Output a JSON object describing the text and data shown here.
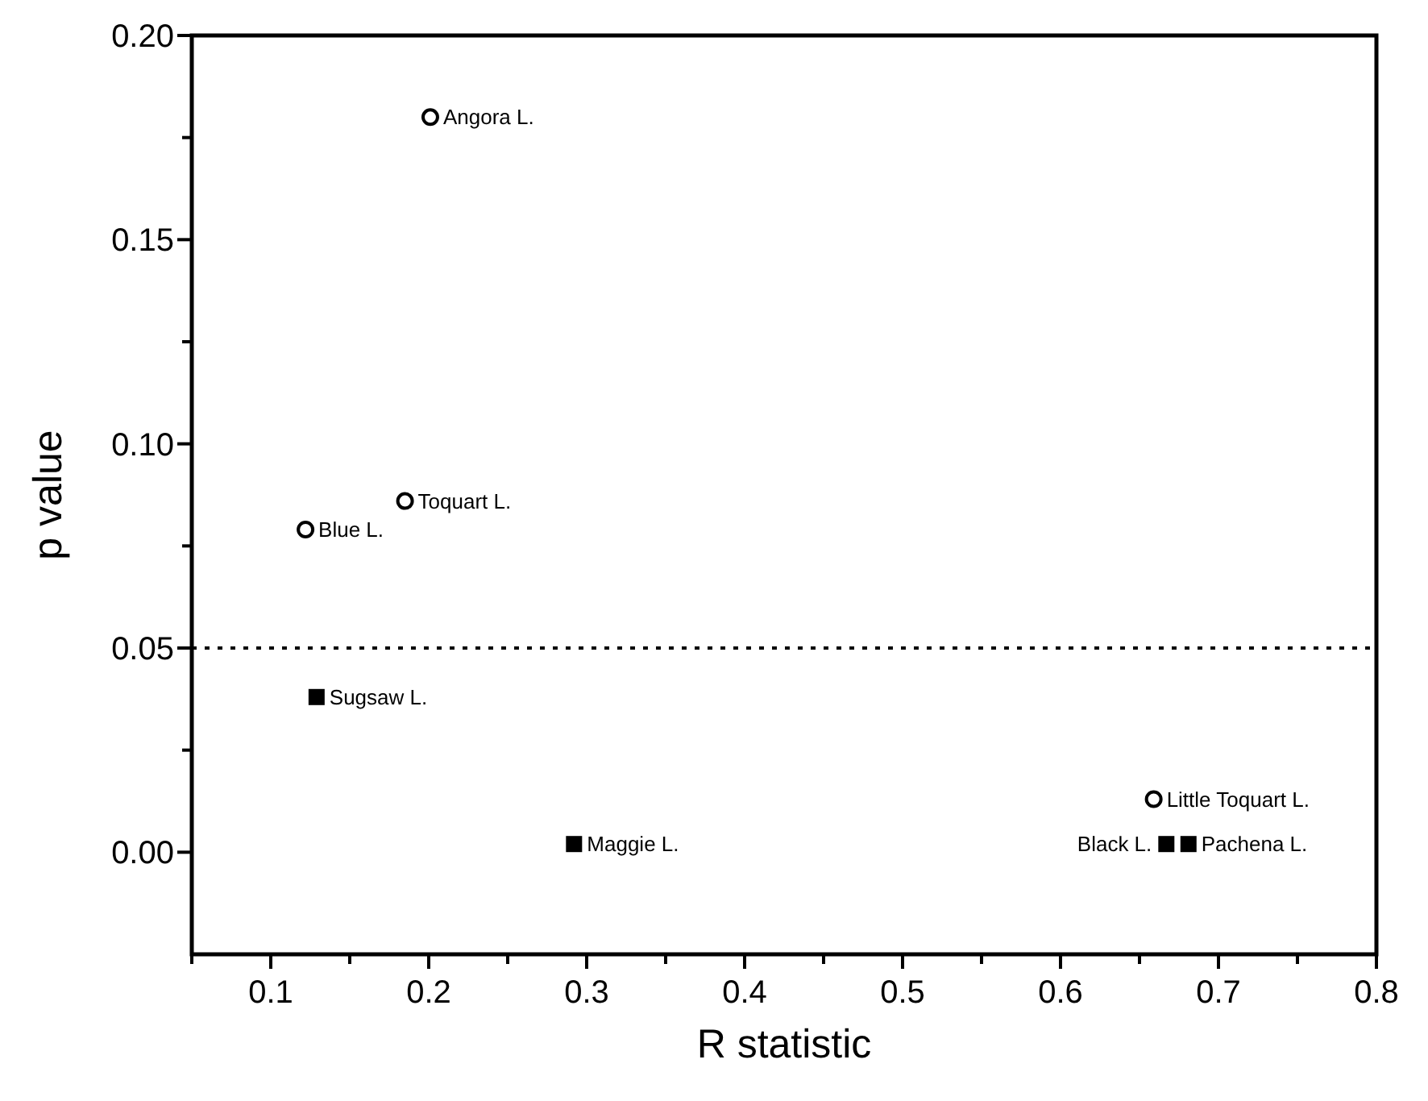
{
  "chart_data": {
    "type": "scatter",
    "xlabel": "R statistic",
    "ylabel": "p value",
    "xlim": [
      0.05,
      0.8
    ],
    "ylim": [
      -0.025,
      0.2
    ],
    "xticks": [
      {
        "value": 0.05,
        "label": null
      },
      0.1,
      {
        "value": 0.15,
        "label": null
      },
      0.2,
      {
        "value": 0.25,
        "label": null
      },
      0.3,
      {
        "value": 0.35,
        "label": null
      },
      0.4,
      {
        "value": 0.45,
        "label": null
      },
      0.5,
      {
        "value": 0.55,
        "label": null
      },
      0.6,
      {
        "value": 0.65,
        "label": null
      },
      0.7,
      {
        "value": 0.75,
        "label": null
      },
      0.8
    ],
    "yticks": [
      {
        "value": 0,
        "label": "0.00"
      },
      {
        "value": 0.025,
        "label": null
      },
      {
        "value": 0.05,
        "label": "0.05"
      },
      {
        "value": 0.075,
        "label": null
      },
      {
        "value": 0.1,
        "label": "0.10"
      },
      {
        "value": 0.125,
        "label": null
      },
      {
        "value": 0.15,
        "label": "0.15"
      },
      {
        "value": 0.175,
        "label": null
      },
      {
        "value": 0.2,
        "label": "0.20"
      }
    ],
    "series": [
      {
        "marker": "circle",
        "color": "#000000",
        "x": [
          0.201,
          0.185,
          0.122,
          0.659
        ],
        "values": [
          0.18,
          0.086,
          0.079,
          0.013
        ]
      },
      {
        "marker": "square",
        "color": "#000000",
        "x": [
          0.129,
          0.292,
          0.667,
          0.681
        ],
        "values": [
          0.038,
          0.002,
          0.002,
          0.002
        ]
      }
    ],
    "ref_lines": [
      {
        "axis": "y",
        "value": 0.05,
        "line_style": "dotted"
      }
    ],
    "annotations": [
      {
        "text": "Angora L.",
        "x": 0.201,
        "y": 0.18
      },
      {
        "text": "Toquart L.",
        "x": 0.185,
        "y": 0.086
      },
      {
        "text": "Blue L.",
        "x": 0.122,
        "y": 0.079
      },
      {
        "text": "Sugsaw L.",
        "x": 0.129,
        "y": 0.038
      },
      {
        "text": "Maggie L.",
        "x": 0.292,
        "y": 0.002
      },
      {
        "text": "Little Toquart L.",
        "x": 0.659,
        "y": 0.013
      },
      {
        "text": "Black L.",
        "x": 0.667,
        "y": 0.002
      },
      {
        "text": "Pachena L.",
        "x": 0.681,
        "y": 0.002
      }
    ]
  }
}
